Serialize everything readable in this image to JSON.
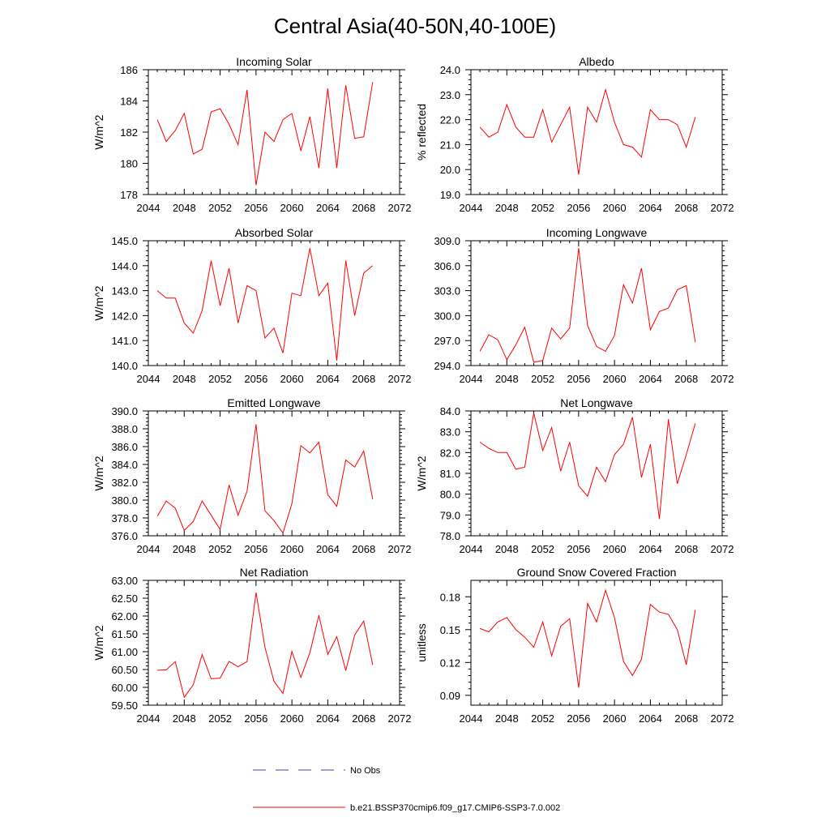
{
  "title": "Central Asia(40-50N,40-100E)",
  "legend": {
    "obs_label": "No Obs",
    "obs_color": "#4a4aaa",
    "model_label": "b.e21.BSSP370cmip6.f09_g17.CMIP6-SSP3-7.0.002",
    "model_color": "#ff0000"
  },
  "chart_data": [
    {
      "type": "line",
      "title": "Incoming Solar",
      "ylabel": "W/m^2",
      "xlim": [
        2044,
        2072
      ],
      "xticks": [
        2044,
        2048,
        2052,
        2056,
        2060,
        2064,
        2068,
        2072
      ],
      "ylim": [
        178,
        186
      ],
      "yticks": [
        178,
        180,
        182,
        184,
        186
      ],
      "ydec": 0,
      "x": [
        2045,
        2046,
        2047,
        2048,
        2049,
        2050,
        2051,
        2052,
        2053,
        2054,
        2055,
        2056,
        2057,
        2058,
        2059,
        2060,
        2061,
        2062,
        2063,
        2064,
        2065,
        2066,
        2067,
        2068,
        2069
      ],
      "y": [
        182.8,
        181.4,
        182.1,
        183.2,
        180.6,
        180.9,
        183.3,
        183.5,
        182.5,
        181.2,
        184.7,
        178.6,
        182.0,
        181.4,
        182.8,
        183.2,
        180.8,
        183.0,
        179.7,
        184.8,
        179.7,
        185.0,
        181.6,
        181.7,
        185.2
      ]
    },
    {
      "type": "line",
      "title": "Albedo",
      "ylabel": "% reflected",
      "xlim": [
        2044,
        2072
      ],
      "xticks": [
        2044,
        2048,
        2052,
        2056,
        2060,
        2064,
        2068,
        2072
      ],
      "ylim": [
        19.0,
        24.0
      ],
      "yticks": [
        19.0,
        20.0,
        21.0,
        22.0,
        23.0,
        24.0
      ],
      "ydec": 1,
      "x": [
        2045,
        2046,
        2047,
        2048,
        2049,
        2050,
        2051,
        2052,
        2053,
        2054,
        2055,
        2056,
        2057,
        2058,
        2059,
        2060,
        2061,
        2062,
        2063,
        2064,
        2065,
        2066,
        2067,
        2068,
        2069
      ],
      "y": [
        21.7,
        21.3,
        21.5,
        22.6,
        21.7,
        21.3,
        21.3,
        22.4,
        21.1,
        21.8,
        22.5,
        19.8,
        22.5,
        21.9,
        23.2,
        21.9,
        21.0,
        20.9,
        20.5,
        22.4,
        22.0,
        22.0,
        21.8,
        20.9,
        22.1
      ]
    },
    {
      "type": "line",
      "title": "Absorbed Solar",
      "ylabel": "W/m^2",
      "xlim": [
        2044,
        2072
      ],
      "xticks": [
        2044,
        2048,
        2052,
        2056,
        2060,
        2064,
        2068,
        2072
      ],
      "ylim": [
        140.0,
        145.0
      ],
      "yticks": [
        140.0,
        141.0,
        142.0,
        143.0,
        144.0,
        145.0
      ],
      "ydec": 1,
      "x": [
        2045,
        2046,
        2047,
        2048,
        2049,
        2050,
        2051,
        2052,
        2053,
        2054,
        2055,
        2056,
        2057,
        2058,
        2059,
        2060,
        2061,
        2062,
        2063,
        2064,
        2065,
        2066,
        2067,
        2068,
        2069
      ],
      "y": [
        143.0,
        142.7,
        142.7,
        141.7,
        141.3,
        142.2,
        144.2,
        142.4,
        143.9,
        141.7,
        143.2,
        143.0,
        141.1,
        141.5,
        140.5,
        142.9,
        142.8,
        144.7,
        142.8,
        143.3,
        140.2,
        144.2,
        142.0,
        143.7,
        144.0
      ]
    },
    {
      "type": "line",
      "title": "Incoming Longwave",
      "ylabel": "",
      "xlim": [
        2044,
        2072
      ],
      "xticks": [
        2044,
        2048,
        2052,
        2056,
        2060,
        2064,
        2068,
        2072
      ],
      "ylim": [
        294.0,
        309.0
      ],
      "yticks": [
        294.0,
        297.0,
        300.0,
        303.0,
        306.0,
        309.0
      ],
      "ydec": 1,
      "x": [
        2045,
        2046,
        2047,
        2048,
        2049,
        2050,
        2051,
        2052,
        2053,
        2054,
        2055,
        2056,
        2057,
        2058,
        2059,
        2060,
        2061,
        2062,
        2063,
        2064,
        2065,
        2066,
        2067,
        2068,
        2069
      ],
      "y": [
        295.7,
        297.7,
        297.1,
        294.7,
        296.5,
        298.6,
        294.4,
        294.6,
        298.5,
        297.2,
        298.5,
        308.1,
        298.8,
        296.3,
        295.7,
        297.6,
        303.7,
        301.5,
        305.7,
        298.3,
        300.5,
        300.9,
        303.1,
        303.6,
        296.8
      ]
    },
    {
      "type": "line",
      "title": "Emitted Longwave",
      "ylabel": "W/m^2",
      "xlim": [
        2044,
        2072
      ],
      "xticks": [
        2044,
        2048,
        2052,
        2056,
        2060,
        2064,
        2068,
        2072
      ],
      "ylim": [
        376.0,
        390.0
      ],
      "yticks": [
        376.0,
        378.0,
        380.0,
        382.0,
        384.0,
        386.0,
        388.0,
        390.0
      ],
      "ydec": 1,
      "x": [
        2045,
        2046,
        2047,
        2048,
        2049,
        2050,
        2051,
        2052,
        2053,
        2054,
        2055,
        2056,
        2057,
        2058,
        2059,
        2060,
        2061,
        2062,
        2063,
        2064,
        2065,
        2066,
        2067,
        2068,
        2069
      ],
      "y": [
        378.2,
        379.9,
        379.1,
        376.6,
        377.6,
        379.9,
        378.3,
        376.7,
        381.7,
        378.3,
        381.0,
        388.5,
        378.8,
        377.7,
        376.3,
        379.6,
        386.1,
        385.3,
        386.5,
        380.6,
        379.3,
        384.5,
        383.7,
        385.5,
        380.1
      ]
    },
    {
      "type": "line",
      "title": "Net Longwave",
      "ylabel": "W/m^2",
      "xlim": [
        2044,
        2072
      ],
      "xticks": [
        2044,
        2048,
        2052,
        2056,
        2060,
        2064,
        2068,
        2072
      ],
      "ylim": [
        78.0,
        84.0
      ],
      "yticks": [
        78.0,
        79.0,
        80.0,
        81.0,
        82.0,
        83.0,
        84.0
      ],
      "ydec": 1,
      "x": [
        2045,
        2046,
        2047,
        2048,
        2049,
        2050,
        2051,
        2052,
        2053,
        2054,
        2055,
        2056,
        2057,
        2058,
        2059,
        2060,
        2061,
        2062,
        2063,
        2064,
        2065,
        2066,
        2067,
        2068,
        2069
      ],
      "y": [
        82.5,
        82.2,
        82.0,
        82.0,
        81.2,
        81.3,
        83.9,
        82.1,
        83.2,
        81.1,
        82.5,
        80.4,
        79.9,
        81.3,
        80.6,
        81.9,
        82.4,
        83.7,
        80.8,
        82.4,
        78.8,
        83.6,
        80.5,
        81.9,
        83.4
      ]
    },
    {
      "type": "line",
      "title": "Net Radiation",
      "ylabel": "W/m^2",
      "xlim": [
        2044,
        2072
      ],
      "xticks": [
        2044,
        2048,
        2052,
        2056,
        2060,
        2064,
        2068,
        2072
      ],
      "ylim": [
        59.5,
        63.0
      ],
      "yticks": [
        59.5,
        60.0,
        60.5,
        61.0,
        61.5,
        62.0,
        62.5,
        63.0
      ],
      "ydec": 2,
      "x": [
        2045,
        2046,
        2047,
        2048,
        2049,
        2050,
        2051,
        2052,
        2053,
        2054,
        2055,
        2056,
        2057,
        2058,
        2059,
        2060,
        2061,
        2062,
        2063,
        2064,
        2065,
        2066,
        2067,
        2068,
        2069
      ],
      "y": [
        60.48,
        60.49,
        60.72,
        59.72,
        60.07,
        60.92,
        60.24,
        60.26,
        60.73,
        60.58,
        60.72,
        62.66,
        61.12,
        60.17,
        59.83,
        61.01,
        60.28,
        60.97,
        62.02,
        60.92,
        61.42,
        60.47,
        61.47,
        61.86,
        60.63
      ]
    },
    {
      "type": "line",
      "title": "Ground Snow Covered Fraction",
      "ylabel": "unitless",
      "xlim": [
        2044,
        2072
      ],
      "xticks": [
        2044,
        2048,
        2052,
        2056,
        2060,
        2064,
        2068,
        2072
      ],
      "ylim": [
        0.081,
        0.195
      ],
      "yticks": [
        0.09,
        0.12,
        0.15,
        0.18
      ],
      "ydec": 2,
      "x": [
        2045,
        2046,
        2047,
        2048,
        2049,
        2050,
        2051,
        2052,
        2053,
        2054,
        2055,
        2056,
        2057,
        2058,
        2059,
        2060,
        2061,
        2062,
        2063,
        2064,
        2065,
        2066,
        2067,
        2068,
        2069
      ],
      "y": [
        0.151,
        0.148,
        0.157,
        0.161,
        0.15,
        0.143,
        0.134,
        0.157,
        0.126,
        0.153,
        0.16,
        0.097,
        0.174,
        0.157,
        0.186,
        0.161,
        0.121,
        0.108,
        0.123,
        0.173,
        0.166,
        0.164,
        0.15,
        0.118,
        0.168
      ]
    }
  ]
}
